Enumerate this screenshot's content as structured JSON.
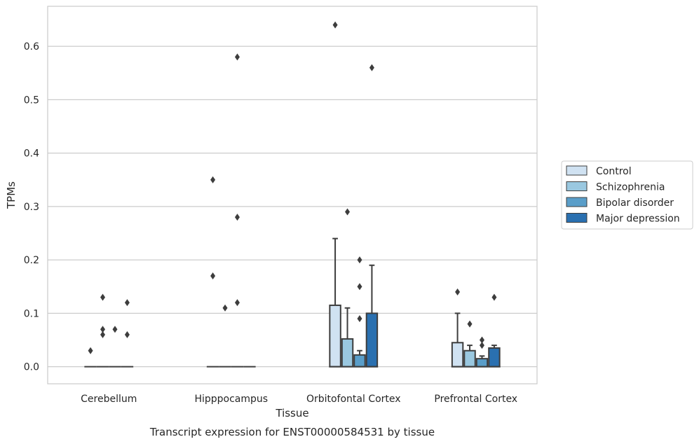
{
  "caption": "Transcript expression for ENST00000584531 by tissue",
  "chart_data": {
    "type": "box",
    "xlabel": "Tissue",
    "ylabel": "TPMs",
    "ylim": [
      -0.032,
      0.675
    ],
    "yticks": [
      0.0,
      0.1,
      0.2,
      0.3,
      0.4,
      0.5,
      0.6
    ],
    "ytick_labels": [
      "0.0",
      "0.1",
      "0.2",
      "0.3",
      "0.4",
      "0.5",
      "0.6"
    ],
    "grid": "horizontal",
    "legend_position": "right",
    "categories": [
      "Cerebellum",
      "Hipppocampus",
      "Orbitofontal Cortex",
      "Prefrontal Cortex"
    ],
    "series": [
      {
        "name": "Control",
        "color": "#d0e2f2",
        "boxes": [
          {
            "q1": 0,
            "median": 0,
            "q3": 0,
            "whisker_low": 0,
            "whisker_high": 0,
            "outliers": [
              0.03
            ]
          },
          {
            "q1": 0,
            "median": 0,
            "q3": 0,
            "whisker_low": 0,
            "whisker_high": 0,
            "outliers": [
              0.17,
              0.35
            ]
          },
          {
            "q1": 0,
            "median": 0,
            "q3": 0.115,
            "whisker_low": 0,
            "whisker_high": 0.24,
            "outliers": [
              0.64
            ]
          },
          {
            "q1": 0,
            "median": 0,
            "q3": 0.045,
            "whisker_low": 0,
            "whisker_high": 0.1,
            "outliers": [
              0.14
            ]
          }
        ]
      },
      {
        "name": "Schizophrenia",
        "color": "#9ac8e0",
        "boxes": [
          {
            "q1": 0,
            "median": 0,
            "q3": 0,
            "whisker_low": 0,
            "whisker_high": 0,
            "outliers": [
              0.06,
              0.07,
              0.13
            ]
          },
          {
            "q1": 0,
            "median": 0,
            "q3": 0,
            "whisker_low": 0,
            "whisker_high": 0,
            "outliers": [
              0.11
            ]
          },
          {
            "q1": 0,
            "median": 0,
            "q3": 0.052,
            "whisker_low": 0,
            "whisker_high": 0.11,
            "outliers": [
              0.29
            ]
          },
          {
            "q1": 0,
            "median": 0,
            "q3": 0.03,
            "whisker_low": 0,
            "whisker_high": 0.04,
            "outliers": [
              0.08
            ]
          }
        ]
      },
      {
        "name": "Bipolar disorder",
        "color": "#5a9ec9",
        "boxes": [
          {
            "q1": 0,
            "median": 0,
            "q3": 0,
            "whisker_low": 0,
            "whisker_high": 0,
            "outliers": [
              0.07
            ]
          },
          {
            "q1": 0,
            "median": 0,
            "q3": 0,
            "whisker_low": 0,
            "whisker_high": 0,
            "outliers": [
              0.12,
              0.28,
              0.58
            ]
          },
          {
            "q1": 0,
            "median": 0,
            "q3": 0.022,
            "whisker_low": 0,
            "whisker_high": 0.03,
            "outliers": [
              0.09,
              0.15,
              0.2
            ]
          },
          {
            "q1": 0,
            "median": 0,
            "q3": 0.015,
            "whisker_low": 0,
            "whisker_high": 0.02,
            "outliers": [
              0.04,
              0.05
            ]
          }
        ]
      },
      {
        "name": "Major depression",
        "color": "#2a70b0",
        "boxes": [
          {
            "q1": 0,
            "median": 0,
            "q3": 0,
            "whisker_low": 0,
            "whisker_high": 0,
            "outliers": [
              0.06,
              0.12
            ]
          },
          {
            "q1": 0,
            "median": 0,
            "q3": 0,
            "whisker_low": 0,
            "whisker_high": 0,
            "outliers": []
          },
          {
            "q1": 0,
            "median": 0,
            "q3": 0.1,
            "whisker_low": 0,
            "whisker_high": 0.19,
            "outliers": [
              0.56
            ]
          },
          {
            "q1": 0,
            "median": 0,
            "q3": 0.035,
            "whisker_low": 0,
            "whisker_high": 0.04,
            "outliers": [
              0.13
            ]
          }
        ]
      }
    ]
  }
}
